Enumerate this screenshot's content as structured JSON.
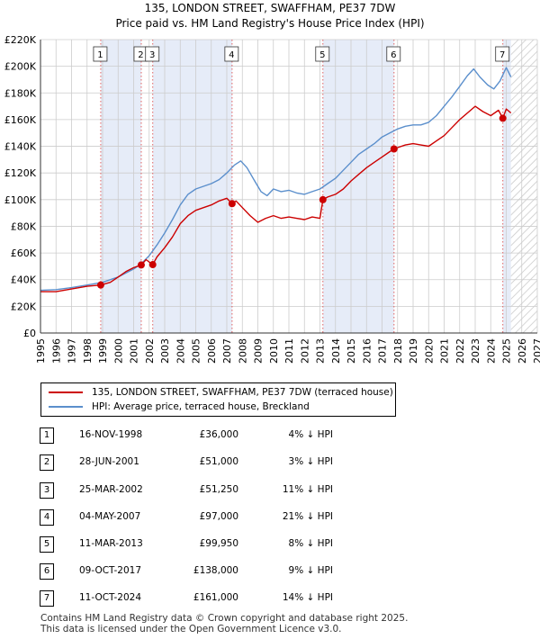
{
  "title": "135, LONDON STREET, SWAFFHAM, PE37 7DW",
  "subtitle": "Price paid vs. HM Land Registry's House Price Index (HPI)",
  "colors": {
    "property": "#cc0000",
    "hpi": "#5b8fcc",
    "shade": "#e6ecf8",
    "grid": "#cccccc"
  },
  "chart_data": {
    "type": "line",
    "title": "135, LONDON STREET, SWAFFHAM, PE37 7DW",
    "subtitle": "Price paid vs. HM Land Registry's House Price Index (HPI)",
    "xlim": [
      1995,
      2027
    ],
    "ylim": [
      0,
      220000
    ],
    "x_ticks": [
      "1995",
      "1996",
      "1997",
      "1998",
      "1999",
      "2000",
      "2001",
      "2002",
      "2003",
      "2004",
      "2005",
      "2006",
      "2007",
      "2008",
      "2009",
      "2010",
      "2011",
      "2012",
      "2013",
      "2014",
      "2015",
      "2016",
      "2017",
      "2018",
      "2019",
      "2020",
      "2021",
      "2022",
      "2023",
      "2024",
      "2025",
      "2026",
      "2027"
    ],
    "y_ticks": [
      {
        "value": 0,
        "label": "£0"
      },
      {
        "value": 20000,
        "label": "£20K"
      },
      {
        "value": 40000,
        "label": "£40K"
      },
      {
        "value": 60000,
        "label": "£60K"
      },
      {
        "value": 80000,
        "label": "£80K"
      },
      {
        "value": 100000,
        "label": "£100K"
      },
      {
        "value": 120000,
        "label": "£120K"
      },
      {
        "value": 140000,
        "label": "£140K"
      },
      {
        "value": 160000,
        "label": "£160K"
      },
      {
        "value": 180000,
        "label": "£180K"
      },
      {
        "value": 200000,
        "label": "£200K"
      },
      {
        "value": 220000,
        "label": "£220K"
      }
    ],
    "shaded_ranges": [
      [
        1998.88,
        2001.49
      ],
      [
        2002.23,
        2007.34
      ],
      [
        2013.19,
        2017.77
      ],
      [
        2024.78,
        2025.3
      ]
    ],
    "future_start": 2025.3,
    "series": [
      {
        "name": "135, LONDON STREET, SWAFFHAM, PE37 7DW (terraced house)",
        "color": "#cc0000",
        "x": [
          1995.0,
          1996.0,
          1997.0,
          1998.0,
          1998.88,
          1999.5,
          2000.0,
          2000.5,
          2001.0,
          2001.49,
          2001.8,
          2002.23,
          2002.5,
          2003.0,
          2003.5,
          2004.0,
          2004.5,
          2005.0,
          2005.5,
          2006.0,
          2006.5,
          2007.0,
          2007.34,
          2007.6,
          2008.0,
          2008.5,
          2009.0,
          2009.5,
          2010.0,
          2010.5,
          2011.0,
          2011.5,
          2012.0,
          2012.5,
          2013.0,
          2013.19,
          2013.5,
          2014.0,
          2014.5,
          2015.0,
          2015.5,
          2016.0,
          2016.5,
          2017.0,
          2017.5,
          2017.77,
          2018.0,
          2018.5,
          2019.0,
          2019.5,
          2020.0,
          2020.5,
          2021.0,
          2021.5,
          2022.0,
          2022.5,
          2023.0,
          2023.5,
          2024.0,
          2024.5,
          2024.78,
          2025.0,
          2025.3
        ],
        "values": [
          31000,
          31000,
          33000,
          35000,
          36000,
          38000,
          42000,
          46000,
          49000,
          51000,
          55000,
          51250,
          57000,
          64000,
          72000,
          82000,
          88000,
          92000,
          94000,
          96000,
          99000,
          101000,
          97000,
          99000,
          94000,
          88000,
          83000,
          86000,
          88000,
          86000,
          87000,
          86000,
          85000,
          87000,
          86000,
          99950,
          102000,
          104000,
          108000,
          114000,
          119000,
          124000,
          128000,
          132000,
          136000,
          138000,
          139000,
          141000,
          142000,
          141000,
          140000,
          144000,
          148000,
          154000,
          160000,
          165000,
          170000,
          166000,
          163000,
          167000,
          161000,
          168000,
          165000
        ]
      },
      {
        "name": "HPI: Average price, terraced house, Breckland",
        "color": "#5b8fcc",
        "x": [
          1995.0,
          1996.0,
          1997.0,
          1998.0,
          1999.0,
          2000.0,
          2001.0,
          2001.5,
          2002.0,
          2002.5,
          2003.0,
          2003.5,
          2004.0,
          2004.5,
          2005.0,
          2005.5,
          2006.0,
          2006.5,
          2007.0,
          2007.5,
          2007.9,
          2008.3,
          2008.8,
          2009.2,
          2009.6,
          2010.0,
          2010.5,
          2011.0,
          2011.5,
          2012.0,
          2012.5,
          2013.0,
          2013.5,
          2014.0,
          2014.5,
          2015.0,
          2015.5,
          2016.0,
          2016.5,
          2017.0,
          2017.5,
          2018.0,
          2018.5,
          2019.0,
          2019.5,
          2020.0,
          2020.5,
          2021.0,
          2021.5,
          2022.0,
          2022.5,
          2022.9,
          2023.3,
          2023.8,
          2024.2,
          2024.6,
          2025.0,
          2025.3
        ],
        "values": [
          32000,
          32500,
          34000,
          36000,
          38000,
          42000,
          48000,
          52000,
          58000,
          66000,
          75000,
          85000,
          96000,
          104000,
          108000,
          110000,
          112000,
          115000,
          120000,
          126000,
          129000,
          124000,
          114000,
          106000,
          103000,
          108000,
          106000,
          107000,
          105000,
          104000,
          106000,
          108000,
          112000,
          116000,
          122000,
          128000,
          134000,
          138000,
          142000,
          147000,
          150000,
          153000,
          155000,
          156000,
          156000,
          158000,
          163000,
          170000,
          177000,
          185000,
          193000,
          198000,
          192000,
          186000,
          183000,
          189000,
          199000,
          192000
        ]
      }
    ],
    "sales": [
      {
        "label": "1",
        "x": 1998.88,
        "price": 36000
      },
      {
        "label": "2",
        "x": 2001.49,
        "price": 51000
      },
      {
        "label": "3",
        "x": 2002.23,
        "price": 51250
      },
      {
        "label": "4",
        "x": 2007.34,
        "price": 97000
      },
      {
        "label": "5",
        "x": 2013.19,
        "price": 99950
      },
      {
        "label": "6",
        "x": 2017.77,
        "price": 138000
      },
      {
        "label": "7",
        "x": 2024.78,
        "price": 161000
      }
    ]
  },
  "legend": {
    "property_label": "135, LONDON STREET, SWAFFHAM, PE37 7DW (terraced house)",
    "hpi_label": "HPI: Average price, terraced house, Breckland"
  },
  "transactions": [
    {
      "num": "1",
      "date": "16-NOV-1998",
      "price": "£36,000",
      "hpi": "4% ↓ HPI"
    },
    {
      "num": "2",
      "date": "28-JUN-2001",
      "price": "£51,000",
      "hpi": "3% ↓ HPI"
    },
    {
      "num": "3",
      "date": "25-MAR-2002",
      "price": "£51,250",
      "hpi": "11% ↓ HPI"
    },
    {
      "num": "4",
      "date": "04-MAY-2007",
      "price": "£97,000",
      "hpi": "21% ↓ HPI"
    },
    {
      "num": "5",
      "date": "11-MAR-2013",
      "price": "£99,950",
      "hpi": "8% ↓ HPI"
    },
    {
      "num": "6",
      "date": "09-OCT-2017",
      "price": "£138,000",
      "hpi": "9% ↓ HPI"
    },
    {
      "num": "7",
      "date": "11-OCT-2024",
      "price": "£161,000",
      "hpi": "14% ↓ HPI"
    }
  ],
  "footer": {
    "line1": "Contains HM Land Registry data © Crown copyright and database right 2025.",
    "line2": "This data is licensed under the Open Government Licence v3.0."
  }
}
